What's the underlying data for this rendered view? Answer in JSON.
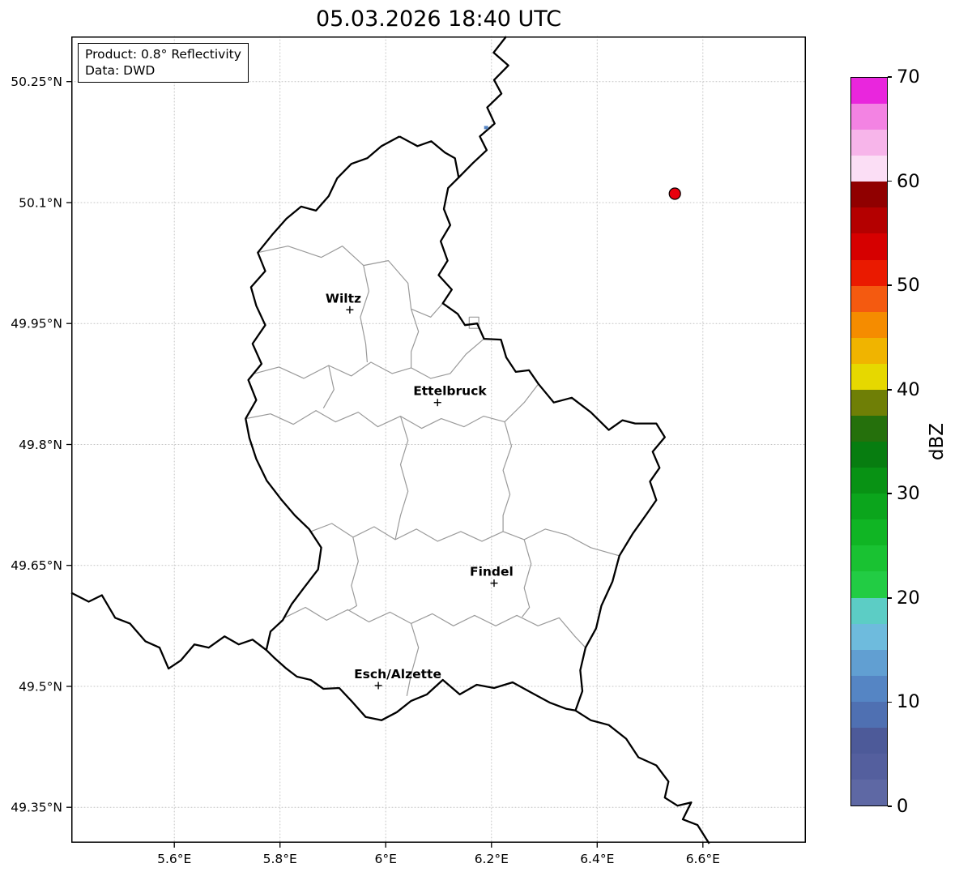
{
  "title": "05.03.2026 18:40 UTC",
  "info_box": {
    "product": "Product: 0.8° Reflectivity",
    "data_source": "Data: DWD"
  },
  "axes": {
    "lon_ticks": [
      {
        "v": 5.6,
        "label": "5.6°E"
      },
      {
        "v": 5.8,
        "label": "5.8°E"
      },
      {
        "v": 6.0,
        "label": "6°E"
      },
      {
        "v": 6.2,
        "label": "6.2°E"
      },
      {
        "v": 6.4,
        "label": "6.4°E"
      },
      {
        "v": 6.6,
        "label": "6.6°E"
      }
    ],
    "lat_ticks": [
      {
        "v": 50.25,
        "label": "50.25°N"
      },
      {
        "v": 50.1,
        "label": "50.1°N"
      },
      {
        "v": 49.95,
        "label": "49.95°N"
      },
      {
        "v": 49.8,
        "label": "49.8°N"
      },
      {
        "v": 49.65,
        "label": "49.65°N"
      },
      {
        "v": 49.5,
        "label": "49.5°N"
      },
      {
        "v": 49.35,
        "label": "49.35°N"
      }
    ]
  },
  "map_view": {
    "lon_range": [
      5.405,
      6.795
    ],
    "lat_range": [
      49.306,
      50.306
    ]
  },
  "colorbar": {
    "label": "dBZ",
    "vmin": 0,
    "vmax": 70,
    "step": 2.5,
    "ticks": [
      {
        "v": 0,
        "label": "0"
      },
      {
        "v": 10,
        "label": "10"
      },
      {
        "v": 20,
        "label": "20"
      },
      {
        "v": 30,
        "label": "30"
      },
      {
        "v": 40,
        "label": "40"
      },
      {
        "v": 50,
        "label": "50"
      },
      {
        "v": 60,
        "label": "60"
      },
      {
        "v": 70,
        "label": "70"
      }
    ],
    "colors": [
      "#5e68a4",
      "#545f9e",
      "#4d5a99",
      "#4f70b2",
      "#5585c4",
      "#619fd2",
      "#6ebbdd",
      "#5ccdc5",
      "#22cc44",
      "#19c232",
      "#10b524",
      "#0ba51c",
      "#089214",
      "#077d10",
      "#25700c",
      "#6f7f06",
      "#e6d800",
      "#f0b400",
      "#f58c00",
      "#f45a10",
      "#ea1a00",
      "#d60000",
      "#b40000",
      "#900000",
      "#fbdef5",
      "#f7b5ea",
      "#f383e3",
      "#e926dd"
    ]
  },
  "map": {
    "style": {
      "country_border": "#000000",
      "district_border": "#9a9a9a",
      "grid": "#c4c4c4",
      "radar_site_fill": "#e8000d",
      "radar_site_edge": "#000000"
    },
    "cities": [
      {
        "name": "Wiltz",
        "lon": 5.932,
        "lat": 49.967
      },
      {
        "name": "Ettelbruck",
        "lon": 6.098,
        "lat": 49.852
      },
      {
        "name": "Findel",
        "lon": 6.205,
        "lat": 49.628
      },
      {
        "name": "Esch/Alzette",
        "lon": 5.986,
        "lat": 49.501
      }
    ],
    "radar_site": {
      "lon": 6.547,
      "lat": 50.111
    },
    "echoes": [
      {
        "lon": 6.19,
        "lat": 50.193,
        "dbz": 10
      }
    ],
    "borders": {
      "country": [
        [
          [
            6.026,
            50.182
          ],
          [
            6.06,
            50.17
          ],
          [
            6.086,
            50.176
          ],
          [
            6.112,
            50.162
          ],
          [
            6.131,
            50.155
          ],
          [
            6.138,
            50.131
          ],
          [
            6.118,
            50.118
          ],
          [
            6.11,
            50.092
          ],
          [
            6.122,
            50.072
          ],
          [
            6.104,
            50.052
          ],
          [
            6.117,
            50.028
          ],
          [
            6.1,
            50.01
          ],
          [
            6.125,
            49.992
          ],
          [
            6.108,
            49.975
          ],
          [
            6.136,
            49.962
          ],
          [
            6.15,
            49.948
          ],
          [
            6.173,
            49.95
          ],
          [
            6.186,
            49.931
          ],
          [
            6.218,
            49.93
          ],
          [
            6.228,
            49.908
          ],
          [
            6.246,
            49.89
          ],
          [
            6.271,
            49.892
          ],
          [
            6.289,
            49.875
          ],
          [
            6.318,
            49.852
          ],
          [
            6.352,
            49.858
          ],
          [
            6.388,
            49.84
          ],
          [
            6.422,
            49.818
          ],
          [
            6.448,
            49.83
          ],
          [
            6.472,
            49.826
          ],
          [
            6.512,
            49.826
          ],
          [
            6.528,
            49.809
          ],
          [
            6.505,
            49.791
          ],
          [
            6.518,
            49.771
          ],
          [
            6.5,
            49.754
          ],
          [
            6.512,
            49.731
          ],
          [
            6.494,
            49.714
          ],
          [
            6.468,
            49.69
          ],
          [
            6.442,
            49.662
          ],
          [
            6.429,
            49.63
          ],
          [
            6.408,
            49.6
          ],
          [
            6.398,
            49.572
          ],
          [
            6.378,
            49.548
          ],
          [
            6.368,
            49.52
          ],
          [
            6.372,
            49.494
          ],
          [
            6.359,
            49.47
          ],
          [
            6.342,
            49.472
          ],
          [
            6.31,
            49.48
          ],
          [
            6.276,
            49.492
          ],
          [
            6.24,
            49.505
          ],
          [
            6.205,
            49.498
          ],
          [
            6.172,
            49.502
          ],
          [
            6.14,
            49.49
          ],
          [
            6.108,
            49.508
          ],
          [
            6.078,
            49.49
          ],
          [
            6.048,
            49.482
          ],
          [
            6.021,
            49.468
          ],
          [
            5.992,
            49.458
          ],
          [
            5.962,
            49.462
          ],
          [
            5.935,
            49.482
          ],
          [
            5.912,
            49.498
          ],
          [
            5.882,
            49.497
          ],
          [
            5.858,
            49.508
          ],
          [
            5.832,
            49.512
          ],
          [
            5.812,
            49.522
          ],
          [
            5.788,
            49.536
          ],
          [
            5.774,
            49.545
          ],
          [
            5.782,
            49.568
          ],
          [
            5.805,
            49.582
          ],
          [
            5.822,
            49.602
          ],
          [
            5.845,
            49.622
          ],
          [
            5.872,
            49.645
          ],
          [
            5.878,
            49.672
          ],
          [
            5.855,
            49.695
          ],
          [
            5.828,
            49.712
          ],
          [
            5.802,
            49.732
          ],
          [
            5.775,
            49.755
          ],
          [
            5.755,
            49.782
          ],
          [
            5.742,
            49.808
          ],
          [
            5.735,
            49.832
          ],
          [
            5.755,
            49.855
          ],
          [
            5.74,
            49.88
          ],
          [
            5.765,
            49.9
          ],
          [
            5.748,
            49.925
          ],
          [
            5.772,
            49.948
          ],
          [
            5.755,
            49.972
          ],
          [
            5.745,
            49.995
          ],
          [
            5.772,
            50.015
          ],
          [
            5.758,
            50.038
          ],
          [
            5.785,
            50.06
          ],
          [
            5.812,
            50.08
          ],
          [
            5.84,
            50.095
          ],
          [
            5.868,
            50.09
          ],
          [
            5.892,
            50.108
          ],
          [
            5.908,
            50.13
          ],
          [
            5.935,
            50.148
          ],
          [
            5.965,
            50.155
          ],
          [
            5.992,
            50.17
          ],
          [
            6.026,
            50.182
          ]
        ],
        [
          [
            6.228,
            50.306
          ],
          [
            6.204,
            50.286
          ],
          [
            6.232,
            50.27
          ],
          [
            6.205,
            50.252
          ],
          [
            6.219,
            50.235
          ],
          [
            6.192,
            50.218
          ],
          [
            6.206,
            50.198
          ],
          [
            6.178,
            50.182
          ],
          [
            6.191,
            50.165
          ],
          [
            6.165,
            50.149
          ],
          [
            6.138,
            50.131
          ]
        ],
        [
          [
            5.405,
            49.616
          ],
          [
            5.438,
            49.605
          ],
          [
            5.463,
            49.613
          ],
          [
            5.488,
            49.585
          ],
          [
            5.516,
            49.578
          ],
          [
            5.545,
            49.556
          ],
          [
            5.572,
            49.548
          ],
          [
            5.589,
            49.522
          ],
          [
            5.612,
            49.532
          ],
          [
            5.638,
            49.552
          ],
          [
            5.665,
            49.548
          ],
          [
            5.695,
            49.562
          ],
          [
            5.722,
            49.552
          ],
          [
            5.748,
            49.558
          ],
          [
            5.774,
            49.545
          ]
        ],
        [
          [
            6.359,
            49.47
          ],
          [
            6.388,
            49.458
          ],
          [
            6.422,
            49.452
          ],
          [
            6.455,
            49.435
          ],
          [
            6.478,
            49.412
          ],
          [
            6.512,
            49.402
          ],
          [
            6.535,
            49.382
          ],
          [
            6.528,
            49.362
          ],
          [
            6.552,
            49.352
          ],
          [
            6.578,
            49.356
          ],
          [
            6.562,
            49.335
          ],
          [
            6.59,
            49.328
          ],
          [
            6.612,
            49.305
          ]
        ]
      ],
      "district": [
        [
          [
            5.758,
            50.038
          ],
          [
            5.815,
            50.046
          ],
          [
            5.878,
            50.032
          ],
          [
            5.918,
            50.046
          ],
          [
            5.958,
            50.022
          ],
          [
            6.005,
            50.028
          ],
          [
            6.042,
            50.0
          ],
          [
            6.048,
            49.968
          ],
          [
            6.085,
            49.958
          ],
          [
            6.108,
            49.975
          ]
        ],
        [
          [
            5.752,
            49.888
          ],
          [
            5.798,
            49.896
          ],
          [
            5.845,
            49.882
          ],
          [
            5.892,
            49.898
          ],
          [
            5.935,
            49.885
          ],
          [
            5.972,
            49.902
          ],
          [
            6.012,
            49.888
          ],
          [
            6.048,
            49.895
          ],
          [
            6.085,
            49.882
          ],
          [
            6.122,
            49.888
          ],
          [
            6.152,
            49.912
          ],
          [
            6.186,
            49.931
          ]
        ],
        [
          [
            6.048,
            49.968
          ],
          [
            6.062,
            49.94
          ],
          [
            6.048,
            49.915
          ],
          [
            6.048,
            49.895
          ]
        ],
        [
          [
            5.958,
            50.022
          ],
          [
            5.968,
            49.99
          ],
          [
            5.952,
            49.958
          ],
          [
            5.962,
            49.925
          ],
          [
            5.965,
            49.902
          ]
        ],
        [
          [
            5.735,
            49.832
          ],
          [
            5.782,
            49.838
          ],
          [
            5.825,
            49.825
          ],
          [
            5.868,
            49.842
          ],
          [
            5.905,
            49.828
          ],
          [
            5.948,
            49.84
          ],
          [
            5.985,
            49.822
          ],
          [
            6.028,
            49.835
          ],
          [
            6.068,
            49.82
          ],
          [
            6.105,
            49.832
          ],
          [
            6.148,
            49.822
          ],
          [
            6.185,
            49.835
          ],
          [
            6.225,
            49.828
          ],
          [
            6.262,
            49.852
          ],
          [
            6.289,
            49.875
          ]
        ],
        [
          [
            5.892,
            49.898
          ],
          [
            5.902,
            49.868
          ],
          [
            5.882,
            49.845
          ]
        ],
        [
          [
            5.858,
            49.692
          ],
          [
            5.898,
            49.702
          ],
          [
            5.938,
            49.685
          ],
          [
            5.978,
            49.698
          ],
          [
            6.018,
            49.682
          ],
          [
            6.058,
            49.695
          ],
          [
            6.098,
            49.68
          ],
          [
            6.142,
            49.692
          ],
          [
            6.182,
            49.68
          ],
          [
            6.222,
            49.692
          ],
          [
            6.262,
            49.682
          ],
          [
            6.302,
            49.695
          ],
          [
            6.342,
            49.688
          ],
          [
            6.388,
            49.672
          ],
          [
            6.442,
            49.662
          ]
        ],
        [
          [
            6.028,
            49.835
          ],
          [
            6.042,
            49.805
          ],
          [
            6.028,
            49.775
          ],
          [
            6.042,
            49.742
          ],
          [
            6.028,
            49.712
          ],
          [
            6.018,
            49.682
          ]
        ],
        [
          [
            6.225,
            49.828
          ],
          [
            6.238,
            49.798
          ],
          [
            6.222,
            49.768
          ],
          [
            6.235,
            49.738
          ],
          [
            6.222,
            49.712
          ],
          [
            6.222,
            49.692
          ]
        ],
        [
          [
            5.808,
            49.585
          ],
          [
            5.848,
            49.598
          ],
          [
            5.888,
            49.582
          ],
          [
            5.928,
            49.595
          ],
          [
            5.968,
            49.58
          ],
          [
            6.008,
            49.592
          ],
          [
            6.048,
            49.578
          ],
          [
            6.088,
            49.59
          ],
          [
            6.128,
            49.575
          ],
          [
            6.168,
            49.588
          ],
          [
            6.208,
            49.575
          ],
          [
            6.248,
            49.588
          ],
          [
            6.288,
            49.575
          ],
          [
            6.328,
            49.585
          ],
          [
            6.358,
            49.562
          ],
          [
            6.378,
            49.548
          ]
        ],
        [
          [
            6.262,
            49.682
          ],
          [
            6.275,
            49.652
          ],
          [
            6.262,
            49.622
          ],
          [
            6.272,
            49.598
          ],
          [
            6.258,
            49.586
          ]
        ],
        [
          [
            5.938,
            49.685
          ],
          [
            5.948,
            49.655
          ],
          [
            5.935,
            49.625
          ],
          [
            5.945,
            49.6
          ],
          [
            5.93,
            49.594
          ]
        ],
        [
          [
            6.048,
            49.578
          ],
          [
            6.062,
            49.548
          ],
          [
            6.048,
            49.515
          ],
          [
            6.04,
            49.488
          ]
        ],
        [
          [
            6.158,
            49.958
          ],
          [
            6.176,
            49.958
          ],
          [
            6.176,
            49.944
          ],
          [
            6.158,
            49.944
          ],
          [
            6.158,
            49.958
          ]
        ]
      ]
    }
  },
  "chart_data": {
    "type": "heatmap",
    "title": "05.03.2026 18:40 UTC",
    "colorbar_label": "dBZ",
    "scale_range": [
      0,
      70
    ],
    "scale_step": 2.5,
    "x_tick_labels": [
      "5.6°E",
      "5.8°E",
      "6°E",
      "6.2°E",
      "6.4°E",
      "6.6°E"
    ],
    "y_tick_labels": [
      "50.25°N",
      "50.1°N",
      "49.95°N",
      "49.8°N",
      "49.65°N",
      "49.5°N",
      "49.35°N"
    ],
    "echo_points": [
      {
        "lon": 6.19,
        "lat": 50.193,
        "dbz": 10
      }
    ],
    "radar_site": {
      "lon": 6.547,
      "lat": 50.111
    },
    "legend_position": "right"
  }
}
